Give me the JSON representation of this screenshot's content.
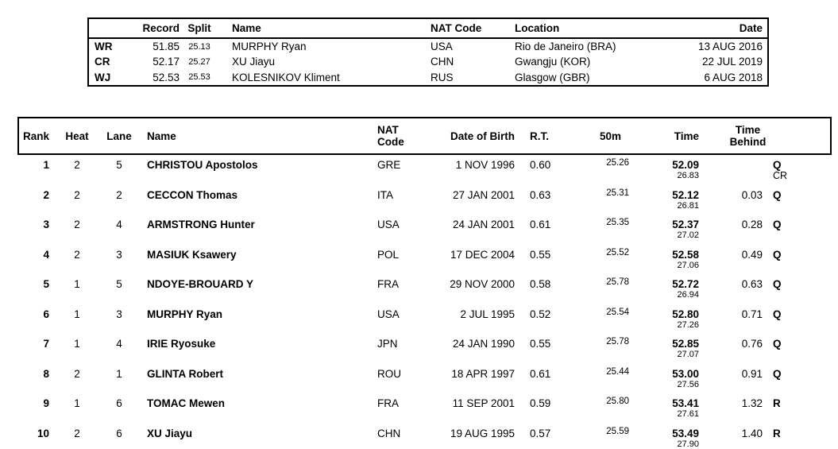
{
  "page": {
    "background_color": "#ffffff",
    "text_color": "#000000"
  },
  "records_table": {
    "headers": {
      "label": "",
      "record": "Record",
      "split": "Split",
      "name": "Name",
      "nat_code": "NAT Code",
      "location": "Location",
      "date": "Date"
    },
    "rows": [
      {
        "label": "WR",
        "record": "51.85",
        "split": "25.13",
        "name": "MURPHY Ryan",
        "nat_code": "USA",
        "location": "Rio de Janeiro (BRA)",
        "date": "13 AUG 2016"
      },
      {
        "label": "CR",
        "record": "52.17",
        "split": "25.27",
        "name": "XU Jiayu",
        "nat_code": "CHN",
        "location": "Gwangju (KOR)",
        "date": "22 JUL 2019"
      },
      {
        "label": "WJ",
        "record": "52.53",
        "split": "25.53",
        "name": "KOLESNIKOV Kliment",
        "nat_code": "RUS",
        "location": "Glasgow (GBR)",
        "date": "6 AUG 2018"
      }
    ]
  },
  "results_table": {
    "headers": {
      "rank": "Rank",
      "heat": "Heat",
      "lane": "Lane",
      "name": "Name",
      "nat_code": "NAT\nCode",
      "dob": "Date of Birth",
      "rt": "R.T.",
      "m50": "50m",
      "time": "Time",
      "behind": "Time\nBehind"
    },
    "rows": [
      {
        "rank": "1",
        "heat": "2",
        "lane": "5",
        "name": "CHRISTOU Apostolos",
        "nat_code": "GRE",
        "dob": "1 NOV 1996",
        "rt": "0.60",
        "m50": "25.26",
        "time": "52.09",
        "second_50": "26.83",
        "behind": "",
        "qual": "Q",
        "qual_note": "CR"
      },
      {
        "rank": "2",
        "heat": "2",
        "lane": "2",
        "name": "CECCON Thomas",
        "nat_code": "ITA",
        "dob": "27 JAN 2001",
        "rt": "0.63",
        "m50": "25.31",
        "time": "52.12",
        "second_50": "26.81",
        "behind": "0.03",
        "qual": "Q",
        "qual_note": ""
      },
      {
        "rank": "3",
        "heat": "2",
        "lane": "4",
        "name": "ARMSTRONG Hunter",
        "nat_code": "USA",
        "dob": "24 JAN 2001",
        "rt": "0.61",
        "m50": "25.35",
        "time": "52.37",
        "second_50": "27.02",
        "behind": "0.28",
        "qual": "Q",
        "qual_note": ""
      },
      {
        "rank": "4",
        "heat": "2",
        "lane": "3",
        "name": "MASIUK Ksawery",
        "nat_code": "POL",
        "dob": "17 DEC 2004",
        "rt": "0.55",
        "m50": "25.52",
        "time": "52.58",
        "second_50": "27.06",
        "behind": "0.49",
        "qual": "Q",
        "qual_note": ""
      },
      {
        "rank": "5",
        "heat": "1",
        "lane": "5",
        "name": "NDOYE-BROUARD Y",
        "nat_code": "FRA",
        "dob": "29 NOV 2000",
        "rt": "0.58",
        "m50": "25.78",
        "time": "52.72",
        "second_50": "26.94",
        "behind": "0.63",
        "qual": "Q",
        "qual_note": ""
      },
      {
        "rank": "6",
        "heat": "1",
        "lane": "3",
        "name": "MURPHY Ryan",
        "nat_code": "USA",
        "dob": "2 JUL 1995",
        "rt": "0.52",
        "m50": "25.54",
        "time": "52.80",
        "second_50": "27.26",
        "behind": "0.71",
        "qual": "Q",
        "qual_note": ""
      },
      {
        "rank": "7",
        "heat": "1",
        "lane": "4",
        "name": "IRIE Ryosuke",
        "nat_code": "JPN",
        "dob": "24 JAN 1990",
        "rt": "0.55",
        "m50": "25.78",
        "time": "52.85",
        "second_50": "27.07",
        "behind": "0.76",
        "qual": "Q",
        "qual_note": ""
      },
      {
        "rank": "8",
        "heat": "2",
        "lane": "1",
        "name": "GLINTA Robert",
        "nat_code": "ROU",
        "dob": "18 APR 1997",
        "rt": "0.61",
        "m50": "25.44",
        "time": "53.00",
        "second_50": "27.56",
        "behind": "0.91",
        "qual": "Q",
        "qual_note": ""
      },
      {
        "rank": "9",
        "heat": "1",
        "lane": "6",
        "name": "TOMAC Mewen",
        "nat_code": "FRA",
        "dob": "11 SEP 2001",
        "rt": "0.59",
        "m50": "25.80",
        "time": "53.41",
        "second_50": "27.61",
        "behind": "1.32",
        "qual": "R",
        "qual_note": ""
      },
      {
        "rank": "10",
        "heat": "2",
        "lane": "6",
        "name": "XU Jiayu",
        "nat_code": "CHN",
        "dob": "19 AUG 1995",
        "rt": "0.57",
        "m50": "25.59",
        "time": "53.49",
        "second_50": "27.90",
        "behind": "1.40",
        "qual": "R",
        "qual_note": ""
      }
    ]
  }
}
